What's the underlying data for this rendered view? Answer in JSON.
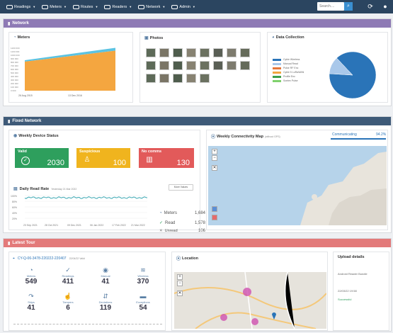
{
  "nav": {
    "items": [
      {
        "label": "Readings"
      },
      {
        "label": "Meters"
      },
      {
        "label": "Routes"
      },
      {
        "label": "Readers"
      },
      {
        "label": "Network"
      },
      {
        "label": "Admin"
      }
    ],
    "search_placeholder": "Search...."
  },
  "network": {
    "title": "Network",
    "meters": {
      "title": "Meters",
      "date_start": "26 Aug 2015",
      "date_end": "13 Dec 2016"
    },
    "photos": {
      "title": "Photos"
    },
    "data_collection": {
      "title": "Data Collection"
    }
  },
  "fixed": {
    "title": "Fixed Network",
    "weekly_status": {
      "title": "Weekly Device Status",
      "tiles": [
        {
          "label": "Valid",
          "value": "2030",
          "color": "#2e9f5d"
        },
        {
          "label": "Suspicious",
          "value": "100",
          "color": "#f0b41e"
        },
        {
          "label": "No comms",
          "value": "130",
          "color": "#e25a5a"
        }
      ]
    },
    "read_rate": {
      "title": "Daily Read Rate",
      "subtitle": "Yesterday 21 Mar 2022",
      "button": "More Values",
      "stats": [
        {
          "label": "Meters",
          "value": "1,684"
        },
        {
          "label": "Read",
          "value": "1,578"
        },
        {
          "label": "Unread",
          "value": "106"
        }
      ]
    },
    "connectivity": {
      "title": "Weekly Connectivity Map",
      "subtitle": "(without GPS)",
      "status": "Communicating",
      "percent": "94.2%"
    }
  },
  "tour": {
    "title": "Latest Tour",
    "tour_id": "CY-Q-06-3478-220222-220407",
    "tour_sub": "22/04/22 Valid",
    "stats": [
      {
        "label": "Meters",
        "value": "549",
        "icon": "meter-icon"
      },
      {
        "label": "Readings",
        "value": "411",
        "icon": "check-icon"
      },
      {
        "label": "Manual",
        "value": "41",
        "icon": "eye-icon"
      },
      {
        "label": "Wireless",
        "value": "370",
        "icon": "wifi-icon"
      },
      {
        "label": "Skips",
        "value": "41",
        "icon": "skip-icon"
      },
      {
        "label": "Tampers",
        "value": "6",
        "icon": "thumb-icon"
      },
      {
        "label": "Deviations",
        "value": "119",
        "icon": "deviation-icon"
      },
      {
        "label": "Exceptions",
        "value": "54",
        "icon": "exception-icon"
      }
    ],
    "location": {
      "title": "Location"
    },
    "upload": {
      "title": "Upload details",
      "device": "Android Reader Bundle",
      "time": "22/03/22 19:58",
      "status": "Successful"
    }
  },
  "chart_data": [
    {
      "type": "area",
      "title": "Meters",
      "x": [
        "26 Aug 2015",
        "13 Dec 2016"
      ],
      "series": [
        {
          "values": [
            820000,
            1130000
          ]
        }
      ]
    },
    {
      "type": "pie",
      "title": "Data Collection",
      "slices": [
        {
          "label": "Cyble Wireless",
          "value": 88,
          "color": "#2a74b8"
        },
        {
          "label": "Manual Read",
          "value": 12,
          "color": "#a9c8ea"
        }
      ],
      "legend": [
        {
          "label": "Cyble Wireless",
          "color": "#2a74b8"
        },
        {
          "label": "Manual Read",
          "color": "#a9c8ea"
        },
        {
          "label": "Pulse RF Enc",
          "color": "#e5773a"
        },
        {
          "label": "Cyble 5 LoRaWAN",
          "color": "#f2a640"
        },
        {
          "label": "Profile Enc",
          "color": "#3b9f4a"
        },
        {
          "label": "Sontex Pulse",
          "color": "#7fd16c"
        }
      ]
    }
  ]
}
